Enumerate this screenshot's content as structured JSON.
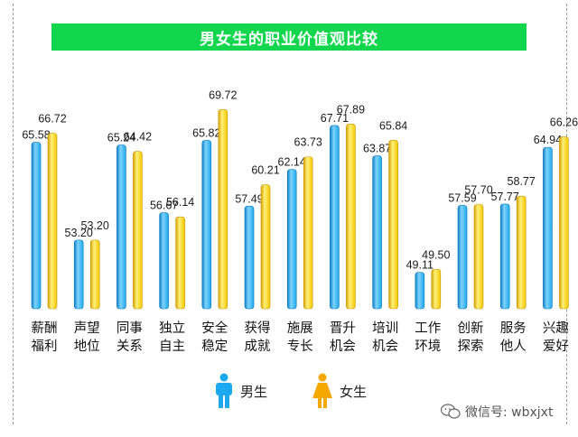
{
  "title": "男女生的职业价值观比较",
  "colors": {
    "title_bg": "#12d74e",
    "male": "#1ea9ee",
    "female": "#f5c800"
  },
  "legend": [
    {
      "label": "男生",
      "icon": "male-person-icon",
      "color": "#1ea9ee"
    },
    {
      "label": "女生",
      "icon": "female-person-icon",
      "color": "#f5a800"
    }
  ],
  "watermark": {
    "icon": "wechat-icon",
    "text": "微信号: wbxjxt"
  },
  "chart_data": {
    "type": "bar",
    "title": "男女生的职业价值观比较",
    "categories": [
      [
        "薪酬",
        "福利"
      ],
      [
        "声望",
        "地位"
      ],
      [
        "同事",
        "关系"
      ],
      [
        "独立",
        "自主"
      ],
      [
        "安全",
        "稳定"
      ],
      [
        "获得",
        "成就"
      ],
      [
        "施展",
        "专长"
      ],
      [
        "晋升",
        "机会"
      ],
      [
        "培训",
        "机会"
      ],
      [
        "工作",
        "环境"
      ],
      [
        "创新",
        "探索"
      ],
      [
        "服务",
        "他人"
      ],
      [
        "兴趣",
        "爱好"
      ]
    ],
    "series": [
      {
        "name": "男生",
        "color": "#1ea9ee",
        "values": [
          65.58,
          53.2,
          65.24,
          56.67,
          65.82,
          57.49,
          62.14,
          67.71,
          63.87,
          49.11,
          57.59,
          57.77,
          64.94
        ],
        "labels": [
          "65.58",
          "53.20",
          "65.24",
          "56.67",
          "65.82",
          "57.49",
          "62.14",
          "67.71",
          "63.87",
          "49.11",
          "57.59",
          "57.77",
          "64.94"
        ]
      },
      {
        "name": "女生",
        "color": "#f5c800",
        "values": [
          66.72,
          53.2,
          64.42,
          56.14,
          69.72,
          60.21,
          63.73,
          67.89,
          65.84,
          49.5,
          57.7,
          58.77,
          66.26
        ],
        "labels": [
          "66.72",
          "53.20",
          "64.42",
          "56.14",
          "69.72",
          "60.21",
          "63.73",
          "67.89",
          "65.84",
          "49.50",
          "57.70",
          "58.77",
          "66.26"
        ]
      }
    ],
    "grid": false,
    "legend_position": "bottom"
  }
}
